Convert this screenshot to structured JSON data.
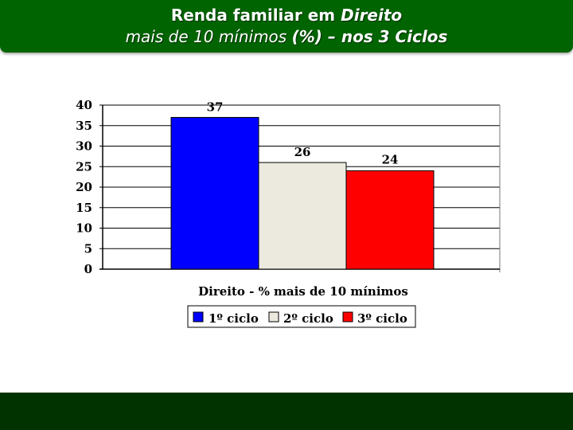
{
  "header": {
    "line1_prefix": "Renda familiar em ",
    "line1_italic": "Direito",
    "line2_prefix": "mais de 10 mínimos ",
    "line2_bold": "(%) –  nos 3 Ciclos"
  },
  "colors": {
    "banner": "#006400",
    "footer": "#003300"
  },
  "chart_data": {
    "type": "bar",
    "title": "",
    "xlabel": "Direito -  % mais de 10 mínimos",
    "ylabel": "",
    "ylim": [
      0,
      40
    ],
    "yticks": [
      0,
      5,
      10,
      15,
      20,
      25,
      30,
      35,
      40
    ],
    "categories": [
      "Direito -  % mais de 10 mínimos"
    ],
    "series": [
      {
        "name": "1º ciclo",
        "values": [
          37
        ],
        "color": "#0000ff"
      },
      {
        "name": "2º ciclo",
        "values": [
          26
        ],
        "color": "#ece9df"
      },
      {
        "name": "3º ciclo",
        "values": [
          24
        ],
        "color": "#ff0000"
      }
    ],
    "data_labels": [
      "37",
      "26",
      "24"
    ],
    "grid": true,
    "legend": "bottom"
  }
}
